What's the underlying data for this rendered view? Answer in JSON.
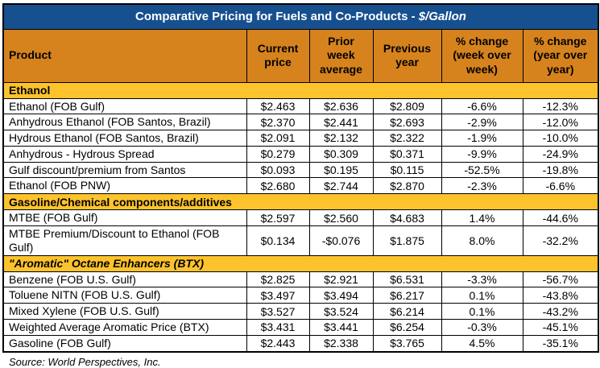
{
  "title": {
    "main": "Comparative Pricing for Fuels and Co-Products - ",
    "unit": "$/Gallon"
  },
  "source": "Source: World Perspectives, Inc.",
  "colors": {
    "title_bar_bg": "#17508F",
    "title_text": "#FFFFFF",
    "header_bg": "#D6831E",
    "section_bg": "#FDC32D",
    "border": "#000000",
    "row_bg": "#FFFFFF",
    "body_text": "#000000"
  },
  "chart_data": {
    "type": "table",
    "title": "Comparative Pricing for Fuels and Co-Products - $/Gallon",
    "columns": [
      "Product",
      "Current price",
      "Prior week average",
      "Previous year",
      "% change (week over week)",
      "% change (year over year)"
    ],
    "sections": [
      {
        "label": "Ethanol",
        "italic": false,
        "rows": [
          [
            "Ethanol (FOB Gulf)",
            "$2.463",
            "$2.636",
            "$2.809",
            "-6.6%",
            "-12.3%"
          ],
          [
            "Anhydrous Ethanol (FOB Santos, Brazil)",
            "$2.370",
            "$2.441",
            "$2.693",
            "-2.9%",
            "-12.0%"
          ],
          [
            "Hydrous Ethanol (FOB Santos, Brazil)",
            "$2.091",
            "$2.132",
            "$2.322",
            "-1.9%",
            "-10.0%"
          ],
          [
            "Anhydrous - Hydrous Spread",
            "$0.279",
            "$0.309",
            "$0.371",
            "-9.9%",
            "-24.9%"
          ],
          [
            "Gulf discount/premium from Santos",
            "$0.093",
            "$0.195",
            "$0.115",
            "-52.5%",
            "-19.8%"
          ],
          [
            "Ethanol (FOB PNW)",
            "$2.680",
            "$2.744",
            "$2.870",
            "-2.3%",
            "-6.6%"
          ]
        ]
      },
      {
        "label": "Gasoline/Chemical components/additives",
        "italic": false,
        "rows": [
          [
            "MTBE (FOB Gulf)",
            "$2.597",
            "$2.560",
            "$4.683",
            "1.4%",
            "-44.6%"
          ],
          [
            "MTBE Premium/Discount to Ethanol (FOB Gulf)",
            "$0.134",
            "-$0.076",
            "$1.875",
            "8.0%",
            "-32.2%"
          ]
        ]
      },
      {
        "label": "\"Aromatic\" Octane Enhancers (BTX)",
        "italic": true,
        "rows": [
          [
            "Benzene (FOB U.S. Gulf)",
            "$2.825",
            "$2.921",
            "$6.531",
            "-3.3%",
            "-56.7%"
          ],
          [
            "Toluene NITN (FOB U.S. Gulf)",
            "$3.497",
            "$3.494",
            "$6.217",
            "0.1%",
            "-43.8%"
          ],
          [
            "Mixed Xylene (FOB U.S. Gulf)",
            "$3.527",
            "$3.524",
            "$6.214",
            "0.1%",
            "-43.2%"
          ],
          [
            "Weighted Average Aromatic Price (BTX)",
            "$3.431",
            "$3.441",
            "$6.254",
            "-0.3%",
            "-45.1%"
          ],
          [
            "Gasoline (FOB Gulf)",
            "$2.443",
            "$2.338",
            "$3.765",
            "4.5%",
            "-35.1%"
          ]
        ]
      }
    ]
  }
}
